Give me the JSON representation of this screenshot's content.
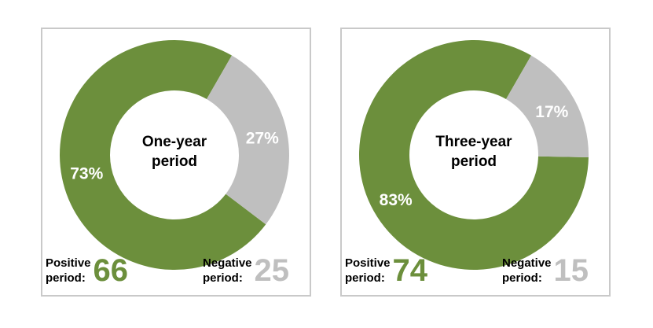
{
  "colors": {
    "positive": "#6c8f3c",
    "negative": "#bfbfbf",
    "border": "#c9c9c9"
  },
  "chart_data": [
    {
      "type": "pie",
      "donut": true,
      "title_lines": [
        "One-year",
        "period"
      ],
      "slices": [
        {
          "key": "positive",
          "value": 73,
          "label": "73%"
        },
        {
          "key": "negative",
          "value": 27,
          "label": "27%"
        }
      ],
      "positive": {
        "label_lines": [
          "Positive",
          "period:"
        ],
        "count": "66"
      },
      "negative": {
        "label_lines": [
          "Negative",
          "period:"
        ],
        "count": "25"
      }
    },
    {
      "type": "pie",
      "donut": true,
      "title_lines": [
        "Three-year",
        "period"
      ],
      "slices": [
        {
          "key": "positive",
          "value": 83,
          "label": "83%"
        },
        {
          "key": "negative",
          "value": 17,
          "label": "17%"
        }
      ],
      "positive": {
        "label_lines": [
          "Positive",
          "period:"
        ],
        "count": "74"
      },
      "negative": {
        "label_lines": [
          "Negative",
          "period:"
        ],
        "count": "15"
      }
    }
  ]
}
